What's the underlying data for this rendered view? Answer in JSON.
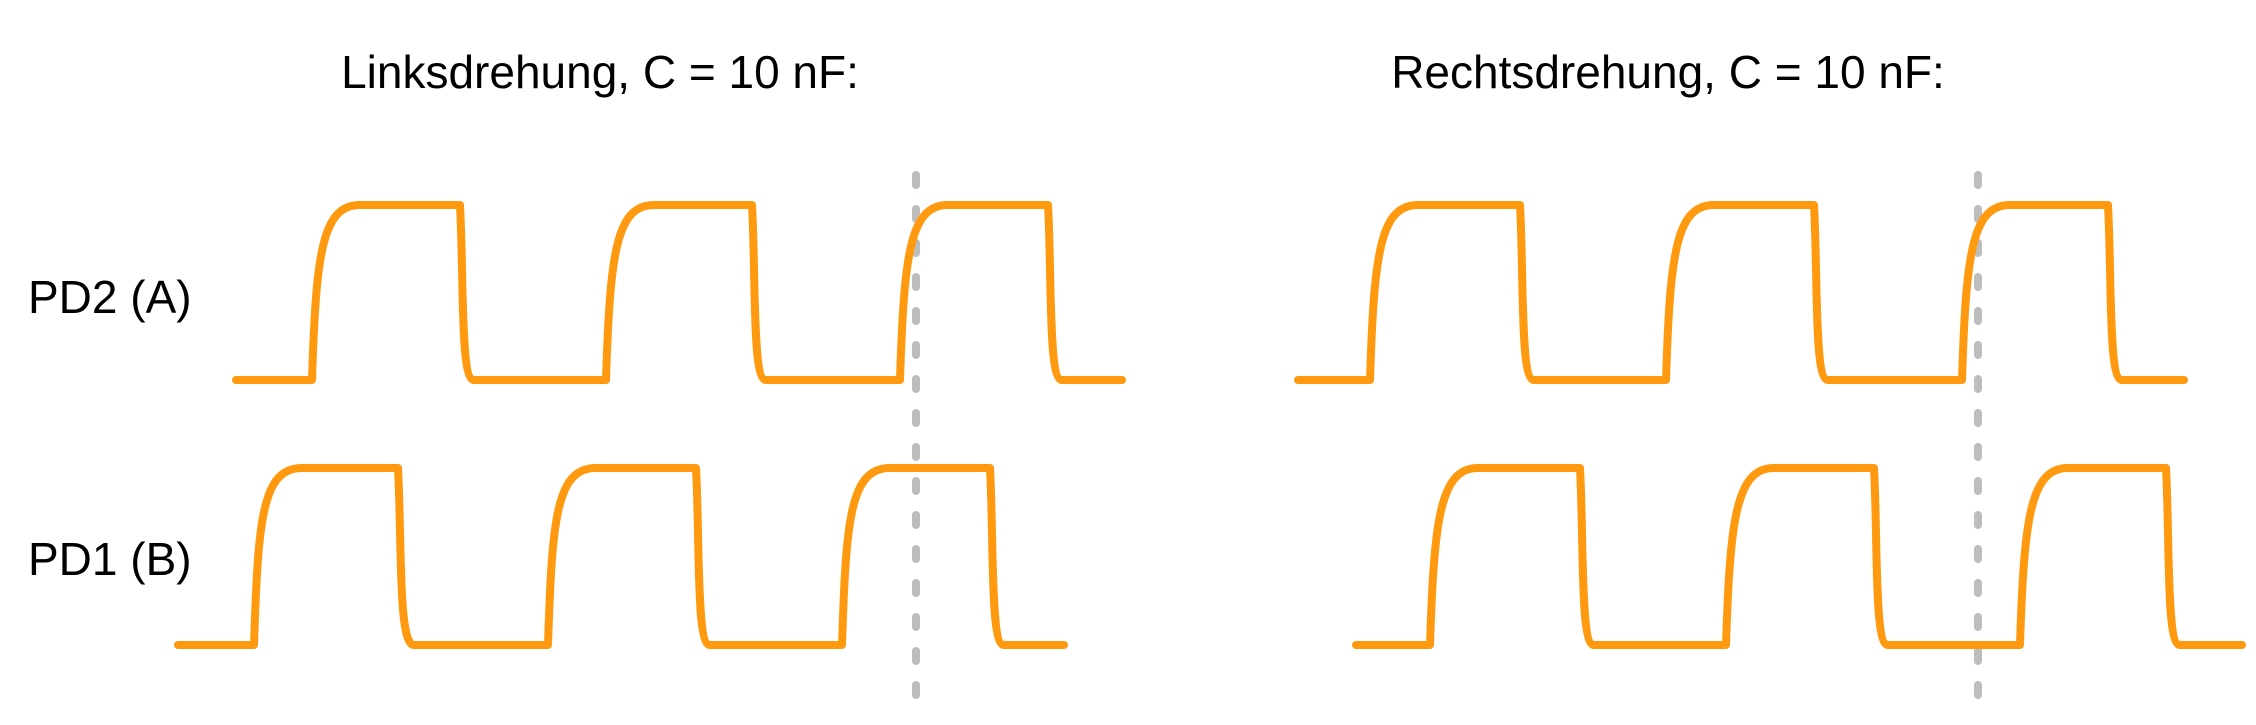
{
  "colors": {
    "signal": "#ff9a10",
    "marker": "#bdbdbd",
    "text": "#000000",
    "background": "#ffffff"
  },
  "labels": {
    "pd2": "PD2 (A)",
    "pd1": "PD1 (B)"
  },
  "panels": [
    {
      "id": "left",
      "title": "Linksdrehung, C = 10 nF:",
      "direction": "counterclockwise",
      "leading_channel": "PD1 (B)",
      "pulses_per_channel": 3
    },
    {
      "id": "right",
      "title": "Rechtsdrehung, C = 10 nF:",
      "direction": "clockwise",
      "leading_channel": "PD2 (A)",
      "pulses_per_channel": 3
    }
  ]
}
